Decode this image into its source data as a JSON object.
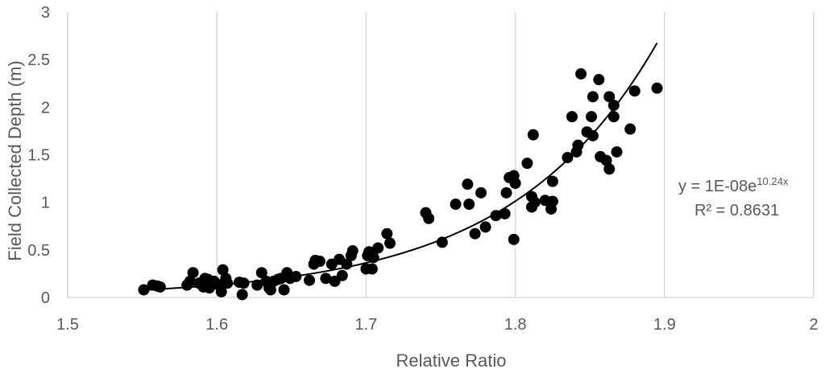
{
  "chart_data": {
    "type": "scatter",
    "xlabel": "Relative Ratio",
    "ylabel": "Field Collected Depth (m)",
    "xlim": [
      1.5,
      2.0
    ],
    "ylim": [
      0,
      3
    ],
    "x_ticks": [
      "1.5",
      "1.6",
      "1.7",
      "1.8",
      "1.9",
      "2"
    ],
    "y_ticks": [
      "0",
      "0.5",
      "1",
      "1.5",
      "2",
      "2.5",
      "3"
    ],
    "grid": "vertical",
    "marker_color": "#000000",
    "trendline": {
      "type": "exponential",
      "coefficient": 1e-08,
      "exponent": 10.24,
      "x_range": [
        1.55,
        1.895
      ],
      "equation_text_prefix": "y = 1E-08e",
      "equation_text_superscript": "10.24x",
      "r2_text": "R² = 0.8631",
      "color": "#000000"
    },
    "points": [
      [
        1.551,
        0.08
      ],
      [
        1.557,
        0.13
      ],
      [
        1.56,
        0.12
      ],
      [
        1.562,
        0.11
      ],
      [
        1.58,
        0.13
      ],
      [
        1.582,
        0.17
      ],
      [
        1.584,
        0.26
      ],
      [
        1.588,
        0.15
      ],
      [
        1.591,
        0.11
      ],
      [
        1.592,
        0.2
      ],
      [
        1.594,
        0.19
      ],
      [
        1.595,
        0.1
      ],
      [
        1.598,
        0.17
      ],
      [
        1.6,
        0.14
      ],
      [
        1.603,
        0.06
      ],
      [
        1.604,
        0.29
      ],
      [
        1.606,
        0.2
      ],
      [
        1.607,
        0.15
      ],
      [
        1.615,
        0.16
      ],
      [
        1.617,
        0.03
      ],
      [
        1.618,
        0.15
      ],
      [
        1.627,
        0.13
      ],
      [
        1.63,
        0.26
      ],
      [
        1.633,
        0.17
      ],
      [
        1.635,
        0.1
      ],
      [
        1.636,
        0.08
      ],
      [
        1.638,
        0.17
      ],
      [
        1.641,
        0.19
      ],
      [
        1.643,
        0.2
      ],
      [
        1.645,
        0.08
      ],
      [
        1.647,
        0.26
      ],
      [
        1.649,
        0.2
      ],
      [
        1.653,
        0.22
      ],
      [
        1.662,
        0.18
      ],
      [
        1.665,
        0.35
      ],
      [
        1.666,
        0.39
      ],
      [
        1.669,
        0.38
      ],
      [
        1.673,
        0.2
      ],
      [
        1.677,
        0.35
      ],
      [
        1.679,
        0.17
      ],
      [
        1.682,
        0.4
      ],
      [
        1.684,
        0.23
      ],
      [
        1.687,
        0.35
      ],
      [
        1.69,
        0.44
      ],
      [
        1.691,
        0.49
      ],
      [
        1.7,
        0.3
      ],
      [
        1.701,
        0.44
      ],
      [
        1.702,
        0.48
      ],
      [
        1.704,
        0.3
      ],
      [
        1.705,
        0.42
      ],
      [
        1.708,
        0.52
      ],
      [
        1.714,
        0.67
      ],
      [
        1.716,
        0.57
      ],
      [
        1.74,
        0.89
      ],
      [
        1.742,
        0.83
      ],
      [
        1.751,
        0.58
      ],
      [
        1.76,
        0.98
      ],
      [
        1.768,
        1.19
      ],
      [
        1.769,
        0.98
      ],
      [
        1.773,
        0.67
      ],
      [
        1.777,
        1.1
      ],
      [
        1.78,
        0.74
      ],
      [
        1.787,
        0.86
      ],
      [
        1.793,
        0.88
      ],
      [
        1.794,
        1.1
      ],
      [
        1.796,
        1.26
      ],
      [
        1.799,
        1.28
      ],
      [
        1.799,
        0.61
      ],
      [
        1.8,
        1.2
      ],
      [
        1.808,
        1.41
      ],
      [
        1.811,
        1.06
      ],
      [
        1.811,
        0.95
      ],
      [
        1.812,
        1.71
      ],
      [
        1.813,
        1.0
      ],
      [
        1.82,
        1.02
      ],
      [
        1.824,
        0.93
      ],
      [
        1.825,
        1.01
      ],
      [
        1.825,
        1.22
      ],
      [
        1.835,
        1.47
      ],
      [
        1.838,
        1.9
      ],
      [
        1.841,
        1.53
      ],
      [
        1.842,
        1.6
      ],
      [
        1.844,
        2.35
      ],
      [
        1.848,
        1.74
      ],
      [
        1.851,
        1.9
      ],
      [
        1.852,
        2.11
      ],
      [
        1.852,
        1.7
      ],
      [
        1.856,
        2.29
      ],
      [
        1.857,
        1.48
      ],
      [
        1.861,
        1.44
      ],
      [
        1.863,
        1.35
      ],
      [
        1.863,
        2.11
      ],
      [
        1.866,
        2.02
      ],
      [
        1.866,
        1.9
      ],
      [
        1.868,
        1.53
      ],
      [
        1.877,
        1.77
      ],
      [
        1.88,
        2.17
      ],
      [
        1.895,
        2.2
      ]
    ]
  }
}
